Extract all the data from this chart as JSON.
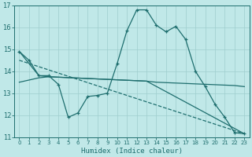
{
  "xlabel": "Humidex (Indice chaleur)",
  "xlim": [
    -0.5,
    23.5
  ],
  "ylim": [
    11,
    17
  ],
  "yticks": [
    11,
    12,
    13,
    14,
    15,
    16,
    17
  ],
  "xticks": [
    0,
    1,
    2,
    3,
    4,
    5,
    6,
    7,
    8,
    9,
    10,
    11,
    12,
    13,
    14,
    15,
    16,
    17,
    18,
    19,
    20,
    21,
    22,
    23
  ],
  "bg_color": "#c0e8e8",
  "grid_color": "#9ecece",
  "line_color": "#1e6e6e",
  "line1_x": [
    0,
    1,
    2,
    3,
    4,
    5,
    6,
    7,
    8,
    9,
    10,
    11,
    12,
    13,
    14,
    15,
    16,
    17,
    18,
    19,
    20,
    21,
    22,
    23
  ],
  "line1_y": [
    14.9,
    14.5,
    13.8,
    13.8,
    13.4,
    11.9,
    12.1,
    12.85,
    12.9,
    13.0,
    14.35,
    15.85,
    16.8,
    16.8,
    16.1,
    15.8,
    16.05,
    15.45,
    14.0,
    13.3,
    12.5,
    11.9,
    11.2,
    11.15
  ],
  "line2_x": [
    0,
    2,
    3,
    13,
    14,
    22,
    23
  ],
  "line2_y": [
    13.5,
    13.7,
    13.75,
    13.55,
    13.5,
    13.35,
    13.3
  ],
  "line3_x": [
    0,
    2,
    3,
    13,
    23
  ],
  "line3_y": [
    14.9,
    13.8,
    13.75,
    13.55,
    11.15
  ],
  "line4_x": [
    0,
    23
  ],
  "line4_y": [
    14.5,
    11.15
  ]
}
